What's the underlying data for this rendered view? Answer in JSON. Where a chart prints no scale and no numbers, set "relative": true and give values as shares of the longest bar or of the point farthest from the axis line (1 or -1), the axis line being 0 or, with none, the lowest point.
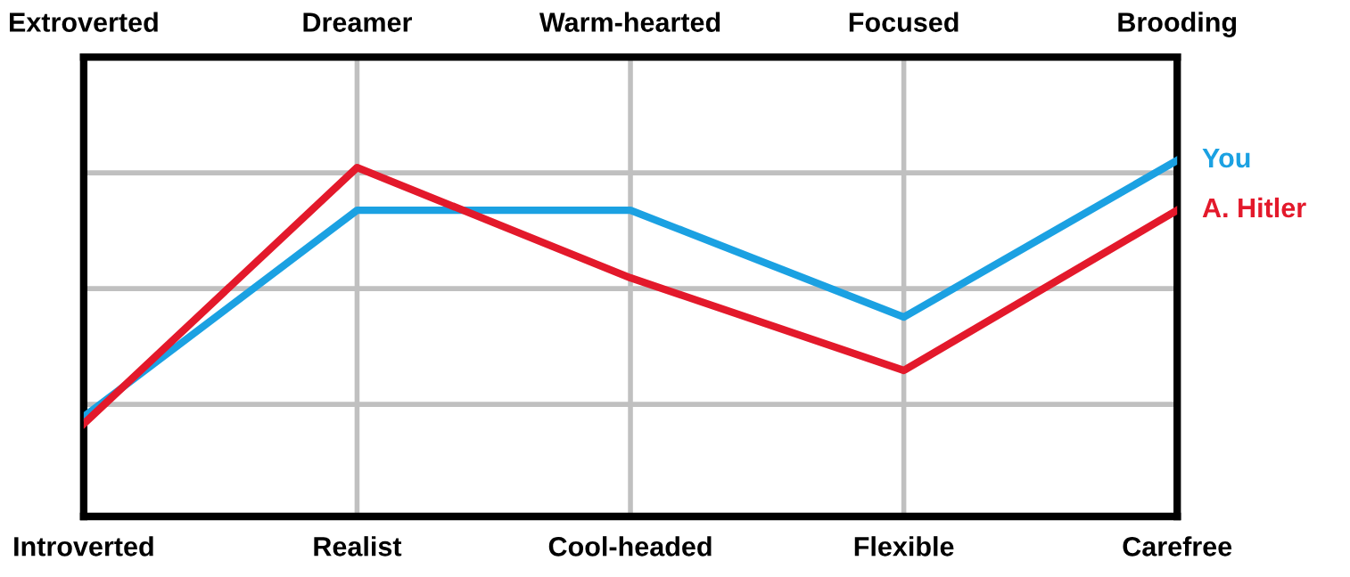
{
  "chart_data": {
    "type": "line",
    "relative": true,
    "categories": [
      "Introverted",
      "Realist",
      "Cool-headed",
      "Flexible",
      "Carefree"
    ],
    "annotations": [
      "Extroverted",
      "Dreamer",
      "Warm-hearted",
      "Focused",
      "Brooding"
    ],
    "series": [
      {
        "name": "You",
        "color": "#1ba1e2",
        "values": [
          0.28,
          0.86,
          0.86,
          0.56,
          1.0
        ]
      },
      {
        "name": "A. Hitler",
        "color": "#e3192b",
        "values": [
          0.26,
          0.98,
          0.67,
          0.41,
          0.86
        ]
      }
    ],
    "grid": true,
    "legend": false,
    "marker": "none",
    "line_style": "solid"
  }
}
